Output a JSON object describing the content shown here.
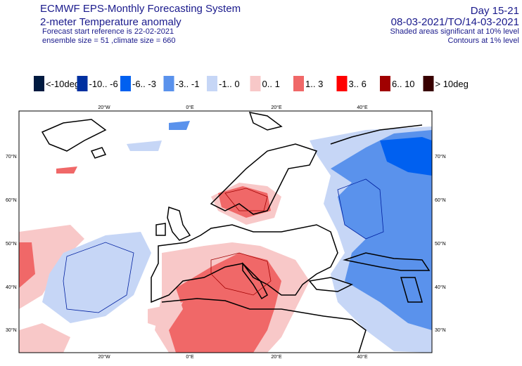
{
  "header": {
    "left": [
      "ECMWF EPS-Monthly Forecasting System",
      "2-meter Temperature anomaly",
      "Forecast start reference is 22-02-2021",
      "ensemble size = 51  ,climate size = 660"
    ],
    "right": [
      "Day 15-21",
      "08-03-2021/TO/14-03-2021",
      "Shaded areas significant at 10% level",
      "Contours at 1% level"
    ]
  },
  "legend": [
    {
      "label": "<-10deg",
      "color": "#001a40"
    },
    {
      "label": "-10.. -6",
      "color": "#0030a0"
    },
    {
      "label": "-6.. -3",
      "color": "#0060f0"
    },
    {
      "label": "-3.. -1",
      "color": "#5a92ec"
    },
    {
      "label": "-1.. 0",
      "color": "#c6d6f6"
    },
    {
      "label": "0.. 1",
      "color": "#f8c8c8"
    },
    {
      "label": "1.. 3",
      "color": "#f06868"
    },
    {
      "label": "3.. 6",
      "color": "#ff0000"
    },
    {
      "label": "6.. 10",
      "color": "#a00000"
    },
    {
      "label": "> 10deg",
      "color": "#380000"
    }
  ],
  "map": {
    "lon_labels": [
      "20°W",
      "0°E",
      "20°E",
      "40°E"
    ],
    "lat_labels": [
      "70°N",
      "60°N",
      "50°N",
      "40°N",
      "30°N"
    ]
  }
}
